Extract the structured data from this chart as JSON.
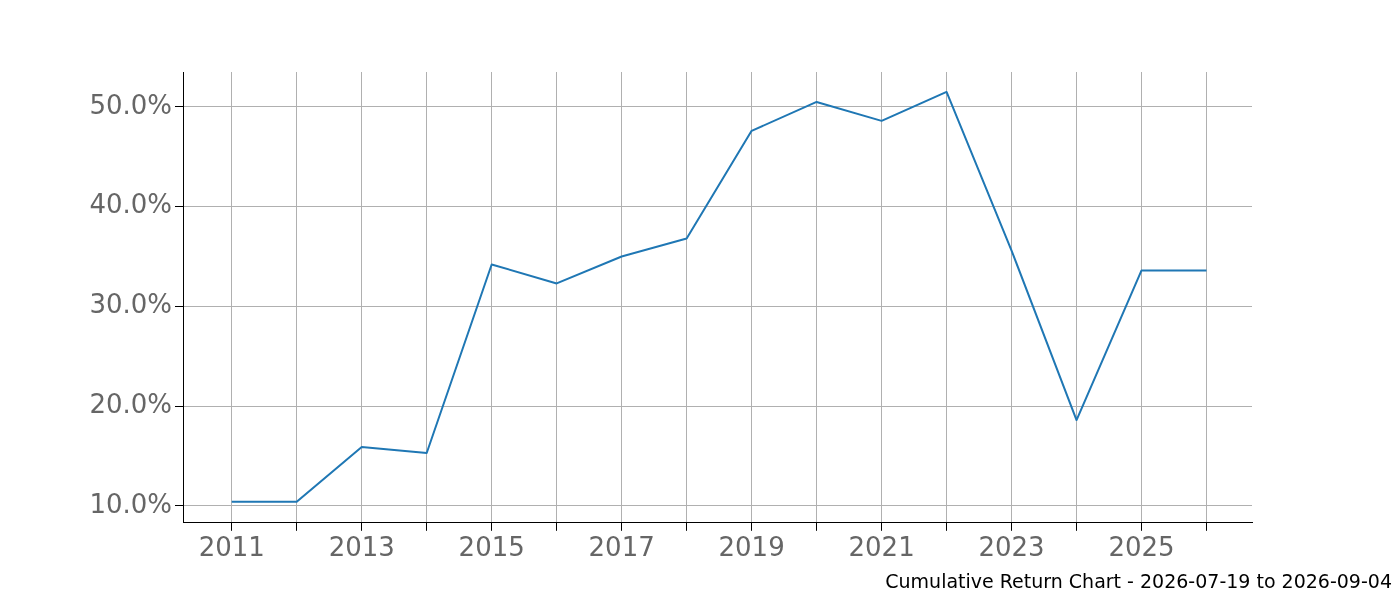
{
  "chart_data": {
    "type": "line",
    "x": [
      2011,
      2012,
      2013,
      2014,
      2015,
      2016,
      2017,
      2018,
      2019,
      2020,
      2021,
      2022,
      2023,
      2024,
      2025,
      2026
    ],
    "series": [
      {
        "color": "#1f77b4",
        "values": [
          10.4,
          10.4,
          15.9,
          15.3,
          34.2,
          32.3,
          35.0,
          36.8,
          47.6,
          50.5,
          48.6,
          51.5,
          35.6,
          18.6,
          33.6,
          33.6
        ]
      }
    ],
    "xlim": [
      2010.25,
      2026.7
    ],
    "xticks": [
      2011,
      {
        "value": 2012,
        "label": null
      },
      2013,
      {
        "value": 2014,
        "label": null
      },
      2015,
      {
        "value": 2016,
        "label": null
      },
      2017,
      {
        "value": 2018,
        "label": null
      },
      2019,
      {
        "value": 2020,
        "label": null
      },
      2021,
      {
        "value": 2022,
        "label": null
      },
      2023,
      {
        "value": 2024,
        "label": null
      },
      2025,
      {
        "value": 2026,
        "label": null
      }
    ],
    "ylim": [
      8.3,
      53.5
    ],
    "yticks": [
      {
        "value": 10,
        "label": "10.0%"
      },
      {
        "value": 20,
        "label": "20.0%"
      },
      {
        "value": 30,
        "label": "30.0%"
      },
      {
        "value": 40,
        "label": "40.0%"
      },
      {
        "value": 50,
        "label": "50.0%"
      }
    ],
    "grid": true,
    "legend": false,
    "marker": "none",
    "line_style": "solid",
    "annotations": [
      "Cumulative Return Chart - 2026-07-19 to 2026-09-04"
    ]
  }
}
